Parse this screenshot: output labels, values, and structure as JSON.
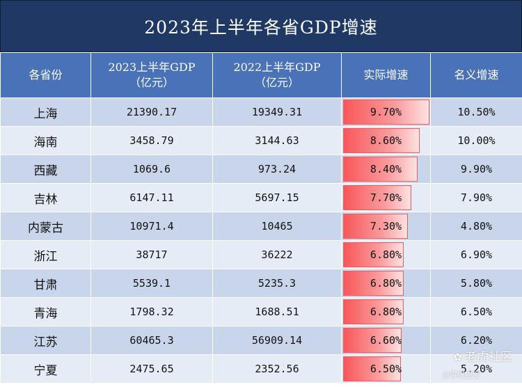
{
  "title": "2023年上半年各省GDP增速",
  "headers": {
    "province": "各省份",
    "gdp2023_line1": "2023上半年GDP",
    "gdp2023_line2": "（亿元）",
    "gdp2022_line1": "2022上半年GDP",
    "gdp2022_line2": "（亿元）",
    "real_growth": "实际增速",
    "nominal_growth": "名义增速"
  },
  "rows": [
    {
      "province": "上海",
      "gdp2023": "21390.17",
      "gdp2022": "19349.31",
      "real": "9.70%",
      "real_value": 9.7,
      "nominal": "10.50%"
    },
    {
      "province": "海南",
      "gdp2023": "3458.79",
      "gdp2022": "3144.63",
      "real": "8.60%",
      "real_value": 8.6,
      "nominal": "10.00%"
    },
    {
      "province": "西藏",
      "gdp2023": "1069.6",
      "gdp2022": "973.24",
      "real": "8.40%",
      "real_value": 8.4,
      "nominal": "9.90%"
    },
    {
      "province": "吉林",
      "gdp2023": "6147.11",
      "gdp2022": "5697.15",
      "real": "7.70%",
      "real_value": 7.7,
      "nominal": "7.90%"
    },
    {
      "province": "内蒙古",
      "gdp2023": "10971.4",
      "gdp2022": "10465",
      "real": "7.30%",
      "real_value": 7.3,
      "nominal": "4.80%"
    },
    {
      "province": "浙江",
      "gdp2023": "38717",
      "gdp2022": "36222",
      "real": "6.80%",
      "real_value": 6.8,
      "nominal": "6.90%"
    },
    {
      "province": "甘肃",
      "gdp2023": "5539.1",
      "gdp2022": "5235.3",
      "real": "6.80%",
      "real_value": 6.8,
      "nominal": "5.80%"
    },
    {
      "province": "青海",
      "gdp2023": "1798.32",
      "gdp2022": "1688.51",
      "real": "6.80%",
      "real_value": 6.8,
      "nominal": "6.50%"
    },
    {
      "province": "江苏",
      "gdp2023": "60465.3",
      "gdp2022": "56909.14",
      "real": "6.60%",
      "real_value": 6.6,
      "nominal": "6.20%"
    },
    {
      "province": "宁夏",
      "gdp2023": "2475.65",
      "gdp2022": "2352.56",
      "real": "6.50%",
      "real_value": 6.5,
      "nominal": "5.20%"
    }
  ],
  "bar_max_value": 9.7,
  "watermark": {
    "main": "老虎社区",
    "sub": "@得银控股"
  },
  "colors": {
    "title_bg": "#1f3864",
    "header_bg": "#4a72b8",
    "row_odd": "#c9d5ea",
    "row_even": "#e6ecf6",
    "bar": "#f7575a"
  }
}
